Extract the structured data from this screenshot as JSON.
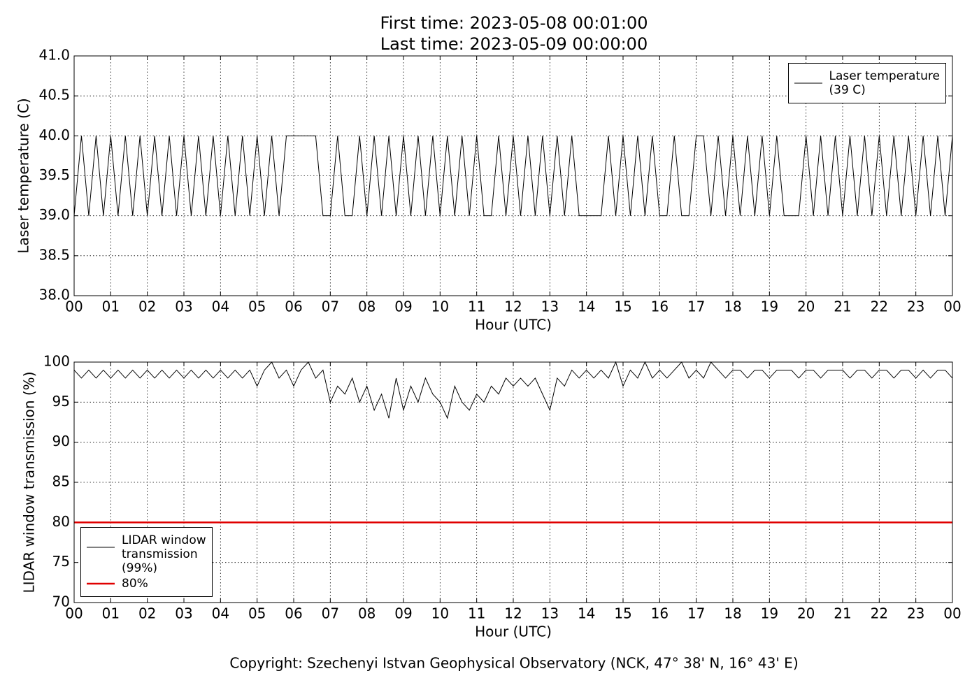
{
  "footer": "Copyright: Szechenyi Istvan Geophysical Observatory (NCK, 47° 38' N, 16° 43' E)",
  "chart_data": [
    {
      "type": "line",
      "title": "First time: 2023-05-08 00:01:00",
      "subtitle": "Last time: 2023-05-09 00:00:00",
      "x_label": "Hour (UTC)",
      "y_label": "Laser temperature (C)",
      "xlim": [
        0,
        24
      ],
      "ylim": [
        38,
        41
      ],
      "xticks": [
        {
          "value": 0,
          "label": "00"
        },
        {
          "value": 1,
          "label": "01"
        },
        {
          "value": 2,
          "label": "02"
        },
        {
          "value": 3,
          "label": "03"
        },
        {
          "value": 4,
          "label": "04"
        },
        {
          "value": 5,
          "label": "05"
        },
        {
          "value": 6,
          "label": "06"
        },
        {
          "value": 7,
          "label": "07"
        },
        {
          "value": 8,
          "label": "08"
        },
        {
          "value": 9,
          "label": "09"
        },
        {
          "value": 10,
          "label": "10"
        },
        {
          "value": 11,
          "label": "11"
        },
        {
          "value": 12,
          "label": "12"
        },
        {
          "value": 13,
          "label": "13"
        },
        {
          "value": 14,
          "label": "14"
        },
        {
          "value": 15,
          "label": "15"
        },
        {
          "value": 16,
          "label": "16"
        },
        {
          "value": 17,
          "label": "17"
        },
        {
          "value": 18,
          "label": "18"
        },
        {
          "value": 19,
          "label": "19"
        },
        {
          "value": 20,
          "label": "20"
        },
        {
          "value": 21,
          "label": "21"
        },
        {
          "value": 22,
          "label": "22"
        },
        {
          "value": 23,
          "label": "23"
        },
        {
          "value": 24,
          "label": "00"
        }
      ],
      "yticks": [
        {
          "value": 38,
          "label": "38.0"
        },
        {
          "value": 38.5,
          "label": "38.5"
        },
        {
          "value": 39,
          "label": "39.0"
        },
        {
          "value": 39.5,
          "label": "39.5"
        },
        {
          "value": 40,
          "label": "40.0"
        },
        {
          "value": 40.5,
          "label": "40.5"
        },
        {
          "value": 41,
          "label": "41.0"
        }
      ],
      "grid": true,
      "legend": "upper right",
      "x": [
        0,
        0.2,
        0.4,
        0.6,
        0.8,
        1,
        1.2,
        1.4,
        1.6,
        1.8,
        2,
        2.2,
        2.4,
        2.6,
        2.8,
        3,
        3.2,
        3.4,
        3.6,
        3.8,
        4,
        4.2,
        4.4,
        4.6,
        4.8,
        5,
        5.2,
        5.4,
        5.6,
        5.8,
        6,
        6.2,
        6.4,
        6.6,
        6.8,
        7,
        7.2,
        7.4,
        7.6,
        7.8,
        8,
        8.2,
        8.4,
        8.6,
        8.8,
        9,
        9.2,
        9.4,
        9.6,
        9.8,
        10,
        10.2,
        10.4,
        10.6,
        10.8,
        11,
        11.2,
        11.4,
        11.6,
        11.8,
        12,
        12.2,
        12.4,
        12.6,
        12.8,
        13,
        13.2,
        13.4,
        13.6,
        13.8,
        14,
        14.2,
        14.4,
        14.6,
        14.8,
        15,
        15.2,
        15.4,
        15.6,
        15.8,
        16,
        16.2,
        16.4,
        16.6,
        16.8,
        17,
        17.2,
        17.4,
        17.6,
        17.8,
        18,
        18.2,
        18.4,
        18.6,
        18.8,
        19,
        19.2,
        19.4,
        19.6,
        19.8,
        20,
        20.2,
        20.4,
        20.6,
        20.8,
        21,
        21.2,
        21.4,
        21.6,
        21.8,
        22,
        22.2,
        22.4,
        22.6,
        22.8,
        23,
        23.2,
        23.4,
        23.6,
        23.8,
        24
      ],
      "series": [
        {
          "name": "Laser temperature\n(39 C)",
          "color": "#000000",
          "values": [
            39,
            40,
            39,
            40,
            39,
            40,
            39,
            40,
            39,
            40,
            39,
            40,
            39,
            40,
            39,
            40,
            39,
            40,
            39,
            40,
            39,
            40,
            39,
            40,
            39,
            40,
            39,
            40,
            39,
            40,
            40,
            40,
            40,
            40,
            39,
            39,
            40,
            39,
            39,
            40,
            39,
            40,
            39,
            40,
            39,
            40,
            39,
            40,
            39,
            40,
            39,
            40,
            39,
            40,
            39,
            40,
            39,
            39,
            40,
            39,
            40,
            39,
            40,
            39,
            40,
            39,
            40,
            39,
            40,
            39,
            39,
            39,
            39,
            40,
            39,
            40,
            39,
            40,
            39,
            40,
            39,
            39,
            40,
            39,
            39,
            40,
            40,
            39,
            40,
            39,
            40,
            39,
            40,
            39,
            40,
            39,
            40,
            39,
            39,
            39,
            40,
            39,
            40,
            39,
            40,
            39,
            40,
            39,
            40,
            39,
            40,
            39,
            40,
            39,
            40,
            39,
            40,
            39,
            40,
            39,
            40
          ]
        }
      ]
    },
    {
      "type": "line",
      "x_label": "Hour (UTC)",
      "y_label": "LIDAR window transmission (%)",
      "xlim": [
        0,
        24
      ],
      "ylim": [
        70,
        100
      ],
      "xticks": [
        {
          "value": 0,
          "label": "00"
        },
        {
          "value": 1,
          "label": "01"
        },
        {
          "value": 2,
          "label": "02"
        },
        {
          "value": 3,
          "label": "03"
        },
        {
          "value": 4,
          "label": "04"
        },
        {
          "value": 5,
          "label": "05"
        },
        {
          "value": 6,
          "label": "06"
        },
        {
          "value": 7,
          "label": "07"
        },
        {
          "value": 8,
          "label": "08"
        },
        {
          "value": 9,
          "label": "09"
        },
        {
          "value": 10,
          "label": "10"
        },
        {
          "value": 11,
          "label": "11"
        },
        {
          "value": 12,
          "label": "12"
        },
        {
          "value": 13,
          "label": "13"
        },
        {
          "value": 14,
          "label": "14"
        },
        {
          "value": 15,
          "label": "15"
        },
        {
          "value": 16,
          "label": "16"
        },
        {
          "value": 17,
          "label": "17"
        },
        {
          "value": 18,
          "label": "18"
        },
        {
          "value": 19,
          "label": "19"
        },
        {
          "value": 20,
          "label": "20"
        },
        {
          "value": 21,
          "label": "21"
        },
        {
          "value": 22,
          "label": "22"
        },
        {
          "value": 23,
          "label": "23"
        },
        {
          "value": 24,
          "label": "00"
        }
      ],
      "yticks": [
        70,
        75,
        80,
        85,
        90,
        95,
        100
      ],
      "grid": true,
      "legend": "lower left",
      "x": [
        0,
        0.2,
        0.4,
        0.6,
        0.8,
        1,
        1.2,
        1.4,
        1.6,
        1.8,
        2,
        2.2,
        2.4,
        2.6,
        2.8,
        3,
        3.2,
        3.4,
        3.6,
        3.8,
        4,
        4.2,
        4.4,
        4.6,
        4.8,
        5,
        5.2,
        5.4,
        5.6,
        5.8,
        6,
        6.2,
        6.4,
        6.6,
        6.8,
        7,
        7.2,
        7.4,
        7.6,
        7.8,
        8,
        8.2,
        8.4,
        8.6,
        8.8,
        9,
        9.2,
        9.4,
        9.6,
        9.8,
        10,
        10.2,
        10.4,
        10.6,
        10.8,
        11,
        11.2,
        11.4,
        11.6,
        11.8,
        12,
        12.2,
        12.4,
        12.6,
        12.8,
        13,
        13.2,
        13.4,
        13.6,
        13.8,
        14,
        14.2,
        14.4,
        14.6,
        14.8,
        15,
        15.2,
        15.4,
        15.6,
        15.8,
        16,
        16.2,
        16.4,
        16.6,
        16.8,
        17,
        17.2,
        17.4,
        17.6,
        17.8,
        18,
        18.2,
        18.4,
        18.6,
        18.8,
        19,
        19.2,
        19.4,
        19.6,
        19.8,
        20,
        20.2,
        20.4,
        20.6,
        20.8,
        21,
        21.2,
        21.4,
        21.6,
        21.8,
        22,
        22.2,
        22.4,
        22.6,
        22.8,
        23,
        23.2,
        23.4,
        23.6,
        23.8,
        24
      ],
      "series": [
        {
          "name": "LIDAR window\ntransmission\n(99%)",
          "color": "#000000",
          "values": [
            99,
            98,
            99,
            98,
            99,
            98,
            99,
            98,
            99,
            98,
            99,
            98,
            99,
            98,
            99,
            98,
            99,
            98,
            99,
            98,
            99,
            98,
            99,
            98,
            99,
            97,
            99,
            100,
            98,
            99,
            97,
            99,
            100,
            98,
            99,
            95,
            97,
            96,
            98,
            95,
            97,
            94,
            96,
            93,
            98,
            94,
            97,
            95,
            98,
            96,
            95,
            93,
            97,
            95,
            94,
            96,
            95,
            97,
            96,
            98,
            97,
            98,
            97,
            98,
            96,
            94,
            98,
            97,
            99,
            98,
            99,
            98,
            99,
            98,
            100,
            97,
            99,
            98,
            100,
            98,
            99,
            98,
            99,
            100,
            98,
            99,
            98,
            100,
            99,
            98,
            99,
            99,
            98,
            99,
            99,
            98,
            99,
            99,
            99,
            98,
            99,
            99,
            98,
            99,
            99,
            99,
            98,
            99,
            99,
            98,
            99,
            99,
            98,
            99,
            99,
            98,
            99,
            98,
            99,
            99,
            98
          ]
        },
        {
          "name": "80%",
          "color": "#e00000",
          "width": 2.5,
          "x": [
            0,
            24
          ],
          "values": [
            80,
            80
          ]
        }
      ]
    }
  ]
}
